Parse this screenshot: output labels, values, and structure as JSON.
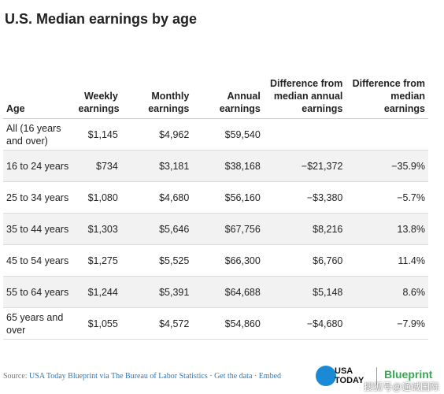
{
  "title": "U.S. Median earnings by age",
  "table": {
    "header": [
      "Age",
      "Weekly earnings",
      "Monthly earnings",
      "Annual earnings",
      "Difference from median annual earnings",
      "Difference from median earnings"
    ],
    "rows": [
      [
        "All (16 years and over)",
        "$1,145",
        "$4,962",
        "$59,540",
        "",
        ""
      ],
      [
        "16 to 24 years",
        "$734",
        "$3,181",
        "$38,168",
        "−$21,372",
        "−35.9%"
      ],
      [
        "25 to 34 years",
        "$1,080",
        "$4,680",
        "$56,160",
        "−$3,380",
        "−5.7%"
      ],
      [
        "35 to 44 years",
        "$1,303",
        "$5,646",
        "$67,756",
        "$8,216",
        "13.8%"
      ],
      [
        "45 to 54 years",
        "$1,275",
        "$5,525",
        "$66,300",
        "$6,760",
        "11.4%"
      ],
      [
        "55 to 64 years",
        "$1,244",
        "$5,391",
        "$64,688",
        "$5,148",
        "8.6%"
      ],
      [
        "65 years and over",
        "$1,055",
        "$4,572",
        "$54,860",
        "−$4,680",
        "−7.9%"
      ]
    ]
  },
  "footer": {
    "source_label": "Source:",
    "source": "USA Today Blueprint via The Bureau of Labor Statistics",
    "get_data": "Get the data",
    "embed": "Embed",
    "logo": "USA TODAY",
    "brand": "Blueprint",
    "watermark": "搜狐号@通诚国际"
  }
}
